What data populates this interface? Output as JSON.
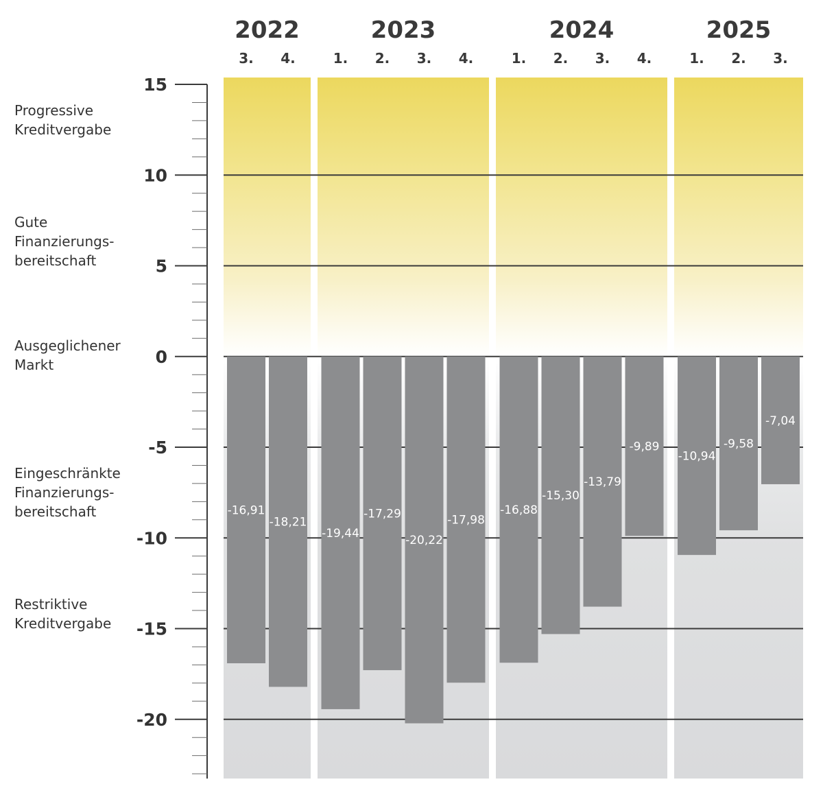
{
  "chart_data": {
    "type": "bar",
    "ylim": [
      -23,
      15
    ],
    "yticks": [
      15,
      10,
      5,
      0,
      -5,
      -10,
      -15,
      -20
    ],
    "ytick_labels": [
      "15",
      "10",
      "5",
      "0",
      "-5",
      "-10",
      "-15",
      "-20"
    ],
    "zones": [
      {
        "label_lines": [
          "Progressive",
          "Kreditvergabe"
        ]
      },
      {
        "label_lines": [
          "Gute",
          "Finanzierungs-",
          "bereitschaft"
        ]
      },
      {
        "label_lines": [
          "Ausgeglichener",
          "Markt"
        ]
      },
      {
        "label_lines": [
          "Eingeschränkte",
          "Finanzierungs-",
          "bereitschaft"
        ]
      },
      {
        "label_lines": [
          "Restriktive",
          "Kreditvergabe"
        ]
      }
    ],
    "groups": [
      {
        "year": "2022",
        "quarters": [
          "3.",
          "4."
        ],
        "values": [
          -16.91,
          -18.21
        ],
        "labels": [
          "-16,91",
          "-18,21"
        ]
      },
      {
        "year": "2023",
        "quarters": [
          "1.",
          "2.",
          "3.",
          "4."
        ],
        "values": [
          -19.44,
          -17.29,
          -20.22,
          -17.98
        ],
        "labels": [
          "-19,44",
          "-17,29",
          "-20,22",
          "-17,98"
        ]
      },
      {
        "year": "2024",
        "quarters": [
          "1.",
          "2.",
          "3.",
          "4."
        ],
        "values": [
          -16.88,
          -15.3,
          -13.79,
          -9.89
        ],
        "labels": [
          "-16,88",
          "-15,30",
          "-13,79",
          "-9,89"
        ]
      },
      {
        "year": "2025",
        "quarters": [
          "1.",
          "2.",
          "3."
        ],
        "values": [
          -10.94,
          -9.58,
          -7.04
        ],
        "labels": [
          "-10,94",
          "-9,58",
          "-7,04"
        ]
      }
    ],
    "colors": {
      "bar": "#8c8d8f",
      "positive_top": "#ecd85e",
      "negative_bg": "#dadbdd",
      "gridline": "#3a3a3a"
    }
  }
}
